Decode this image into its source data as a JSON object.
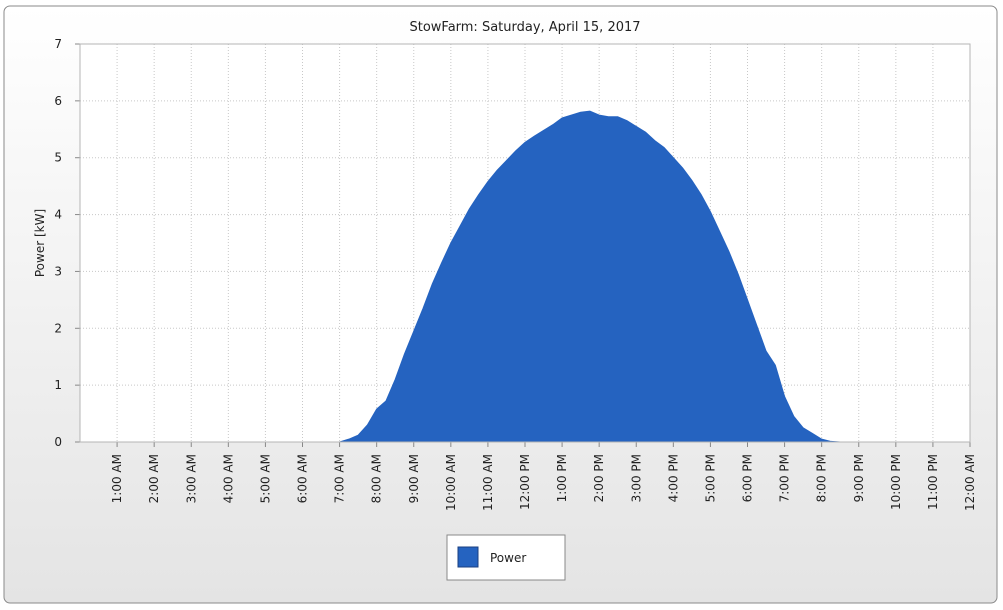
{
  "chart_data": {
    "type": "area",
    "title": "StowFarm: Saturday, April 15, 2017",
    "y_label": "Power [kW]",
    "x": [
      0,
      7.0,
      7.25,
      7.5,
      7.75,
      8.0,
      8.25,
      8.5,
      8.75,
      9.0,
      9.25,
      9.5,
      9.75,
      10.0,
      10.25,
      10.5,
      10.75,
      11.0,
      11.25,
      11.5,
      11.75,
      12.0,
      12.25,
      12.5,
      12.75,
      13.0,
      13.25,
      13.5,
      13.75,
      14.0,
      14.25,
      14.5,
      14.75,
      15.0,
      15.25,
      15.5,
      15.75,
      16.0,
      16.25,
      16.5,
      16.75,
      17.0,
      17.25,
      17.5,
      17.75,
      18.0,
      18.25,
      18.5,
      18.75,
      19.0,
      19.25,
      19.5,
      19.75,
      20.0,
      20.25,
      20.5,
      24
    ],
    "series": [
      {
        "name": "Power",
        "color": "#2563c0",
        "values": [
          0,
          0,
          0.05,
          0.12,
          0.3,
          0.58,
          0.72,
          1.1,
          1.55,
          1.95,
          2.35,
          2.78,
          3.15,
          3.5,
          3.8,
          4.1,
          4.35,
          4.58,
          4.78,
          4.95,
          5.12,
          5.27,
          5.38,
          5.48,
          5.58,
          5.7,
          5.75,
          5.8,
          5.82,
          5.75,
          5.72,
          5.72,
          5.65,
          5.55,
          5.45,
          5.3,
          5.18,
          5.0,
          4.82,
          4.6,
          4.35,
          4.05,
          3.7,
          3.35,
          2.95,
          2.5,
          2.05,
          1.6,
          1.35,
          0.8,
          0.45,
          0.25,
          0.15,
          0.05,
          0.01,
          0,
          0
        ]
      }
    ],
    "xlim": [
      0,
      24
    ],
    "xticks": [
      {
        "value": 1,
        "label": "1:00 AM"
      },
      {
        "value": 2,
        "label": "2:00 AM"
      },
      {
        "value": 3,
        "label": "3:00 AM"
      },
      {
        "value": 4,
        "label": "4:00 AM"
      },
      {
        "value": 5,
        "label": "5:00 AM"
      },
      {
        "value": 6,
        "label": "6:00 AM"
      },
      {
        "value": 7,
        "label": "7:00 AM"
      },
      {
        "value": 8,
        "label": "8:00 AM"
      },
      {
        "value": 9,
        "label": "9:00 AM"
      },
      {
        "value": 10,
        "label": "10:00 AM"
      },
      {
        "value": 11,
        "label": "11:00 AM"
      },
      {
        "value": 12,
        "label": "12:00 PM"
      },
      {
        "value": 13,
        "label": "1:00 PM"
      },
      {
        "value": 14,
        "label": "2:00 PM"
      },
      {
        "value": 15,
        "label": "3:00 PM"
      },
      {
        "value": 16,
        "label": "4:00 PM"
      },
      {
        "value": 17,
        "label": "5:00 PM"
      },
      {
        "value": 18,
        "label": "6:00 PM"
      },
      {
        "value": 19,
        "label": "7:00 PM"
      },
      {
        "value": 20,
        "label": "8:00 PM"
      },
      {
        "value": 21,
        "label": "9:00 PM"
      },
      {
        "value": 22,
        "label": "10:00 PM"
      },
      {
        "value": 23,
        "label": "11:00 PM"
      },
      {
        "value": 24,
        "label": "12:00 AM"
      }
    ],
    "ylim": [
      0,
      7
    ],
    "yticks": [
      0,
      1,
      2,
      3,
      4,
      5,
      6,
      7
    ],
    "grid": true,
    "legend": "bottom"
  }
}
